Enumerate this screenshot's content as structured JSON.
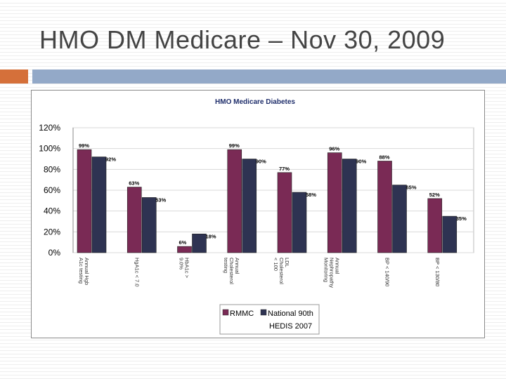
{
  "slide": {
    "title": "HMO DM Medicare – Nov 30, 2009"
  },
  "colors": {
    "accent_orange": "#d5703a",
    "accent_blue": "#93a9c8",
    "rmmc": "#7a2a55",
    "national": "#2e3352"
  },
  "chart_data": {
    "type": "bar",
    "title": "HMO Medicare Diabetes",
    "categories": [
      "Annual Hgb A1c testing",
      "HgA1c < 7.0",
      "HbA1c > 9.0%",
      "Annual Cholesterol testing",
      "LDL Cholesterol < 100",
      "Annual Nephropathy Monitoring",
      "BP < 140/90",
      "BP < 130/80"
    ],
    "series": [
      {
        "name": "RMMC",
        "values": [
          99,
          63,
          6,
          99,
          77,
          96,
          88,
          52
        ],
        "labels": [
          "99%",
          "63%",
          "6%",
          "99%",
          "77%",
          "96%",
          "88%",
          "52%"
        ]
      },
      {
        "name": "National 90th HEDIS 2007",
        "values": [
          92,
          53,
          18,
          90,
          58,
          90,
          65,
          35
        ],
        "labels": [
          "92%",
          "53%",
          "18%",
          "90%",
          "58%",
          "90%",
          "65%",
          "35%"
        ]
      }
    ],
    "yticks": [
      "0%",
      "20%",
      "40%",
      "60%",
      "80%",
      "100%",
      "120%"
    ],
    "ylim": [
      0,
      120
    ],
    "legend": {
      "position": "bottom",
      "entries": [
        "RMMC",
        "National 90th",
        "HEDIS 2007"
      ]
    },
    "xlabel": "",
    "ylabel": ""
  }
}
